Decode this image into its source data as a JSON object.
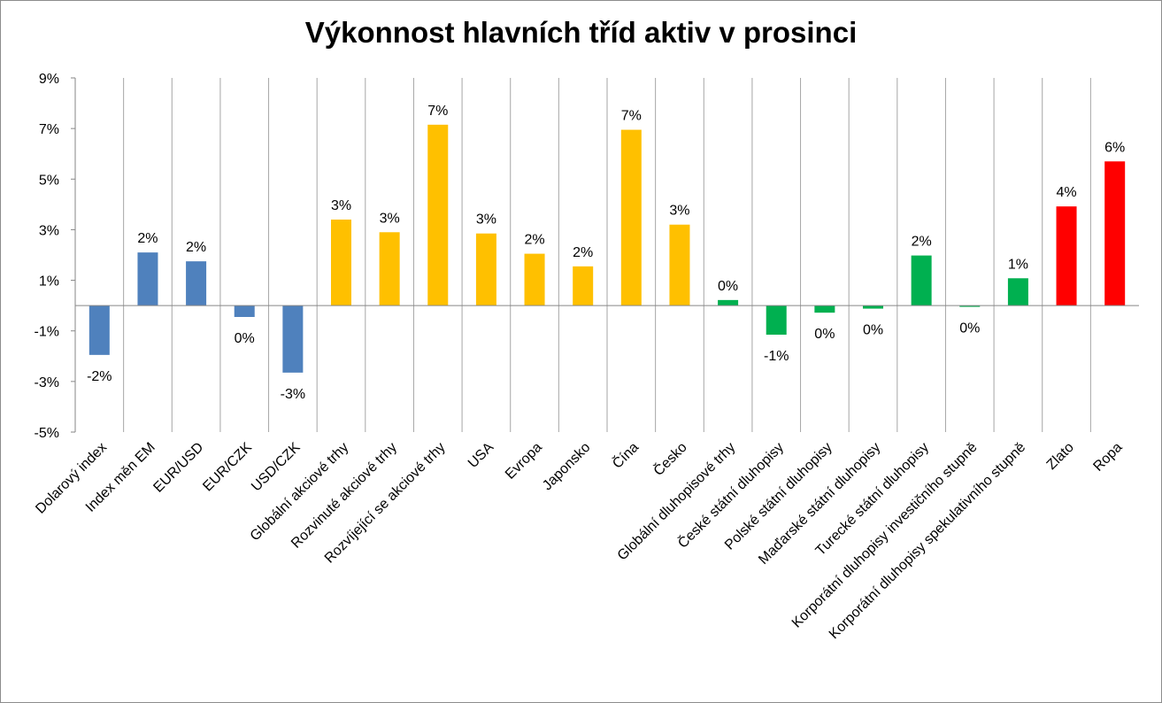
{
  "chart_data": {
    "type": "bar",
    "title": "Výkonnost hlavních tříd aktiv v prosinci",
    "xlabel": "",
    "ylabel": "",
    "ylim": [
      -5,
      9
    ],
    "yticks": [
      9,
      7,
      5,
      3,
      1,
      -1,
      -3,
      -5
    ],
    "ytick_labels": [
      "9%",
      "7%",
      "5%",
      "3%",
      "1%",
      "-1%",
      "-3%",
      "-5%"
    ],
    "grid": "vertical category separators",
    "legend": "none",
    "categories": [
      "Dolarový index",
      "Index měn EM",
      "EUR/USD",
      "EUR/CZK",
      "USD/CZK",
      "Globální akciové trhy",
      "Rozvinuté akciové trhy",
      "Rozvíjející se akciové trhy",
      "USA",
      "Evropa",
      "Japonsko",
      "Čína",
      "Česko",
      "Globální dluhopisové trhy",
      "České státní dluhopisy",
      "Polské státní dluhopisy",
      "Maďarské státní dluhopisy",
      "Turecké státní dluhopisy",
      "Korporátní dluhopisy investičního stupně",
      "Korporátní dluhopisy spekulativního stupně",
      "Zlato",
      "Ropa"
    ],
    "values": [
      -1.95,
      2.1,
      1.75,
      -0.45,
      -2.65,
      3.4,
      2.9,
      7.15,
      2.85,
      2.05,
      1.55,
      6.95,
      3.2,
      0.22,
      -1.15,
      -0.28,
      -0.12,
      1.98,
      -0.05,
      1.08,
      3.92,
      5.7
    ],
    "data_labels": [
      "-2%",
      "2%",
      "2%",
      "0%",
      "-3%",
      "3%",
      "3%",
      "7%",
      "3%",
      "2%",
      "2%",
      "7%",
      "3%",
      "0%",
      "-1%",
      "0%",
      "0%",
      "2%",
      "0%",
      "1%",
      "4%",
      "6%"
    ],
    "bar_colors": [
      "#4f81bd",
      "#4f81bd",
      "#4f81bd",
      "#4f81bd",
      "#4f81bd",
      "#ffc000",
      "#ffc000",
      "#ffc000",
      "#ffc000",
      "#ffc000",
      "#ffc000",
      "#ffc000",
      "#ffc000",
      "#00b050",
      "#00b050",
      "#00b050",
      "#00b050",
      "#00b050",
      "#00b050",
      "#00b050",
      "#ff0000",
      "#ff0000"
    ]
  }
}
